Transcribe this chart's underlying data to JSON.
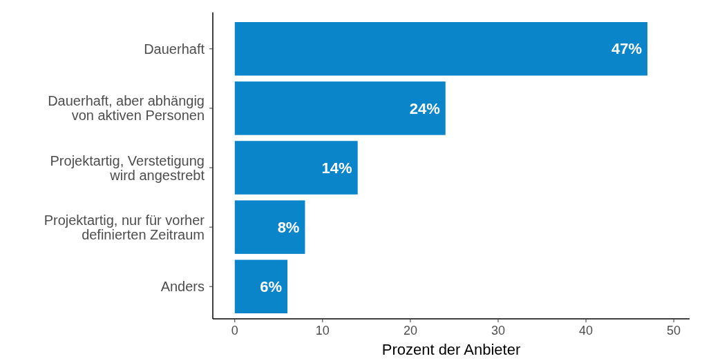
{
  "chart_data": {
    "type": "bar",
    "orientation": "horizontal",
    "xlabel": "Prozent der Anbieter",
    "categories": [
      "Dauerhaft",
      "Dauerhaft, aber abhängig\nvon aktiven Personen",
      "Projektartig, Verstetigung\nwird angestrebt",
      "Projektartig, nur für vorher\ndefinierten Zeitraum",
      "Anders"
    ],
    "values": [
      47,
      24,
      14,
      8,
      6
    ],
    "value_labels": [
      "47%",
      "24%",
      "14%",
      "8%",
      "6%"
    ],
    "color": "#0a85c9",
    "xlim": [
      -2.5,
      51.8
    ],
    "xticks": [
      0,
      10,
      20,
      30,
      40,
      50
    ],
    "grid": false
  }
}
